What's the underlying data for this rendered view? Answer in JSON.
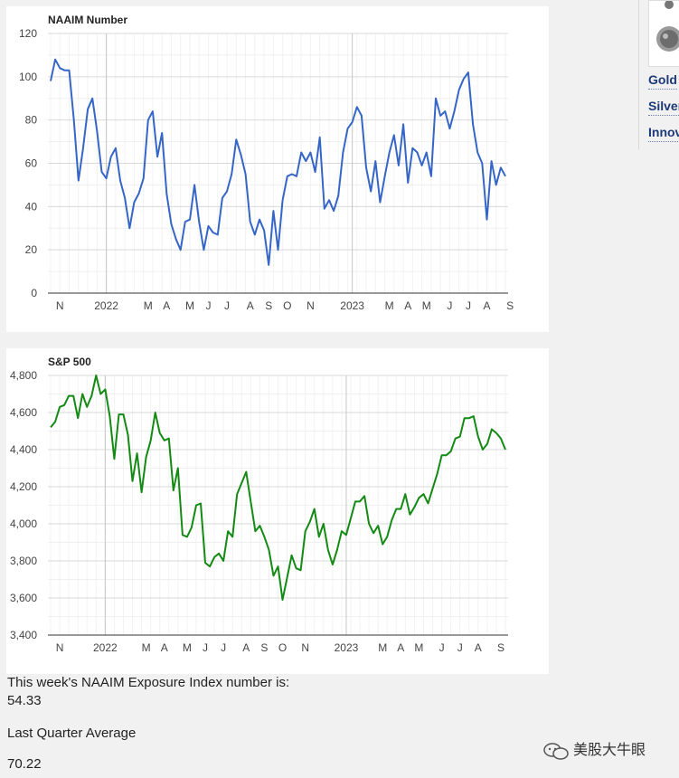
{
  "sidebar": {
    "links": [
      "Gold",
      "Silver",
      "Innov"
    ]
  },
  "stats": {
    "exposure_label": "This week's NAAIM Exposure Index number is:",
    "exposure_value": "54.33",
    "quarter_label": "Last Quarter Average",
    "quarter_value": "70.22"
  },
  "watermark": "美股大牛眼",
  "colors": {
    "naaim_line": "#3566c7",
    "sp_line": "#138a13"
  },
  "chart_data": [
    {
      "type": "line",
      "title": "NAAIM Number",
      "ylim": [
        0,
        120
      ],
      "yticks": [
        0,
        20,
        40,
        60,
        80,
        100,
        120
      ],
      "ytick_labels": [
        "0",
        "20",
        "40",
        "60",
        "80",
        "100",
        "120"
      ],
      "xticks": [
        {
          "label": "N",
          "at": 2
        },
        {
          "label": "2022",
          "at": 12
        },
        {
          "label": "M",
          "at": 21
        },
        {
          "label": "A",
          "at": 25
        },
        {
          "label": "M",
          "at": 30
        },
        {
          "label": "J",
          "at": 34
        },
        {
          "label": "J",
          "at": 38
        },
        {
          "label": "A",
          "at": 43
        },
        {
          "label": "S",
          "at": 47
        },
        {
          "label": "O",
          "at": 51
        },
        {
          "label": "N",
          "at": 56
        },
        {
          "label": "2023",
          "at": 65
        },
        {
          "label": "M",
          "at": 73
        },
        {
          "label": "A",
          "at": 77
        },
        {
          "label": "M",
          "at": 81
        },
        {
          "label": "J",
          "at": 86
        },
        {
          "label": "J",
          "at": 90
        },
        {
          "label": "A",
          "at": 94
        },
        {
          "label": "S",
          "at": 99
        }
      ],
      "grid": true,
      "values": [
        98,
        108,
        104,
        103,
        103,
        80,
        52,
        67,
        85,
        90,
        75,
        56,
        53,
        63,
        67,
        52,
        44,
        30,
        42,
        46,
        53,
        80,
        84,
        63,
        74,
        46,
        32,
        25,
        20,
        33,
        34,
        50,
        33,
        20,
        31,
        28,
        27,
        44,
        47,
        55,
        71,
        64,
        55,
        33,
        27,
        34,
        29,
        13,
        38,
        20,
        43,
        54,
        55,
        54,
        65,
        61,
        65,
        56,
        72,
        39,
        43,
        38,
        45,
        65,
        76,
        79,
        86,
        82,
        58,
        47,
        61,
        42,
        54,
        65,
        73,
        59,
        78,
        51,
        67,
        65,
        59,
        65,
        54,
        90,
        82,
        84,
        76,
        84,
        94,
        99,
        102,
        78,
        65,
        60,
        34,
        61,
        50,
        58,
        54
      ]
    },
    {
      "type": "line",
      "title": "S&P 500",
      "ylim": [
        3400,
        4800
      ],
      "yticks": [
        3400,
        3600,
        3800,
        4000,
        4200,
        4400,
        4600,
        4800
      ],
      "ytick_labels": [
        "3,400",
        "3,600",
        "3,800",
        "4,000",
        "4,200",
        "4,400",
        "4,600",
        "4,800"
      ],
      "xticks": [
        {
          "label": "N",
          "at": 2
        },
        {
          "label": "2022",
          "at": 12
        },
        {
          "label": "M",
          "at": 21
        },
        {
          "label": "A",
          "at": 25
        },
        {
          "label": "M",
          "at": 30
        },
        {
          "label": "J",
          "at": 34
        },
        {
          "label": "J",
          "at": 38
        },
        {
          "label": "A",
          "at": 43
        },
        {
          "label": "S",
          "at": 47
        },
        {
          "label": "O",
          "at": 51
        },
        {
          "label": "N",
          "at": 56
        },
        {
          "label": "2023",
          "at": 65
        },
        {
          "label": "M",
          "at": 73
        },
        {
          "label": "A",
          "at": 77
        },
        {
          "label": "M",
          "at": 81
        },
        {
          "label": "J",
          "at": 86
        },
        {
          "label": "J",
          "at": 90
        },
        {
          "label": "A",
          "at": 94
        },
        {
          "label": "S",
          "at": 99
        }
      ],
      "grid": true,
      "values": [
        4520,
        4550,
        4630,
        4640,
        4690,
        4690,
        4570,
        4700,
        4630,
        4690,
        4800,
        4700,
        4725,
        4580,
        4350,
        4590,
        4590,
        4480,
        4230,
        4380,
        4170,
        4360,
        4450,
        4600,
        4490,
        4450,
        4460,
        4180,
        4300,
        3940,
        3930,
        3980,
        4100,
        4110,
        3790,
        3770,
        3820,
        3840,
        3800,
        3960,
        3930,
        4160,
        4220,
        4280,
        4120,
        3960,
        3990,
        3930,
        3860,
        3720,
        3770,
        3590,
        3710,
        3830,
        3760,
        3750,
        3960,
        4010,
        4080,
        3930,
        4000,
        3860,
        3780,
        3860,
        3960,
        3940,
        4030,
        4120,
        4120,
        4150,
        4000,
        3950,
        3990,
        3890,
        3930,
        4020,
        4080,
        4080,
        4160,
        4050,
        4090,
        4140,
        4160,
        4110,
        4190,
        4270,
        4370,
        4370,
        4390,
        4460,
        4470,
        4570,
        4570,
        4580,
        4470,
        4400,
        4430,
        4510,
        4490,
        4460,
        4400
      ]
    }
  ]
}
